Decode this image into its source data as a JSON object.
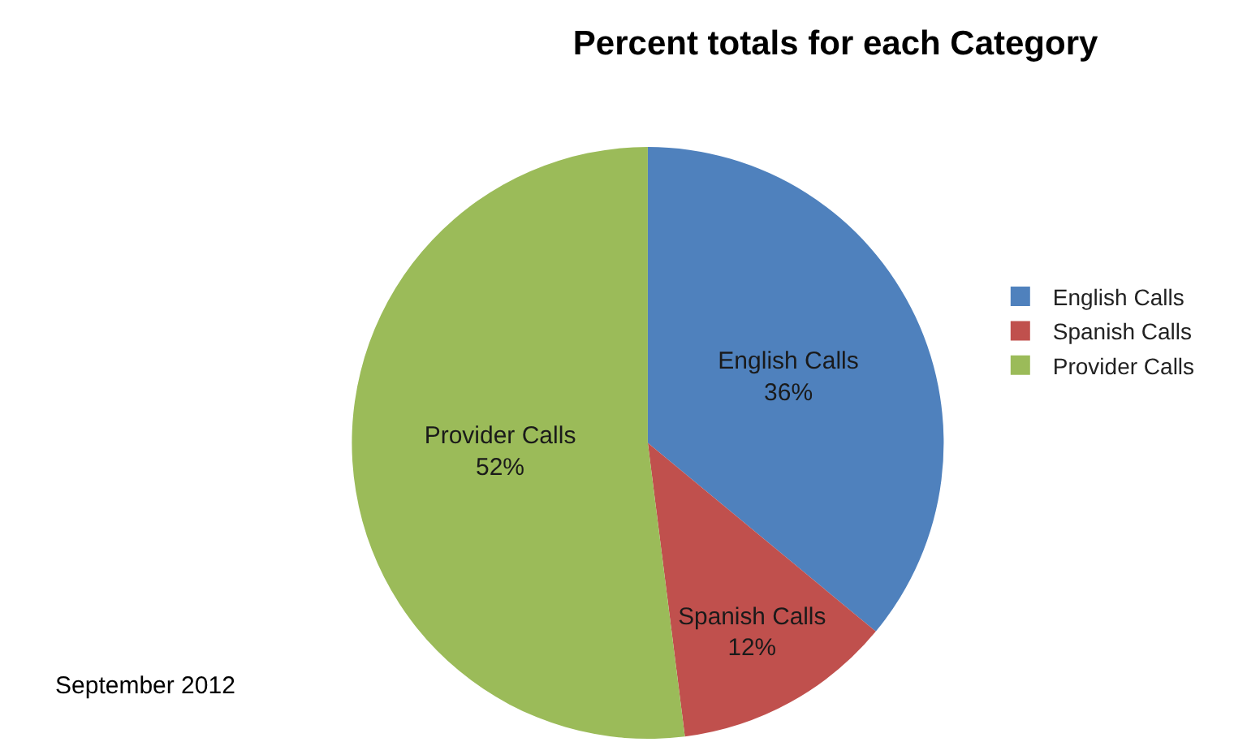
{
  "chart_data": {
    "type": "pie",
    "title": "Percent totals for each Category",
    "categories": [
      "English Calls",
      "Spanish Calls",
      "Provider Calls"
    ],
    "values": [
      36,
      12,
      52
    ],
    "value_labels": [
      "36%",
      "12%",
      "52%"
    ],
    "colors": [
      "#4f81bd",
      "#c0504d",
      "#9bbb59"
    ],
    "legend": "right",
    "annotations": [
      "September 2012"
    ]
  }
}
